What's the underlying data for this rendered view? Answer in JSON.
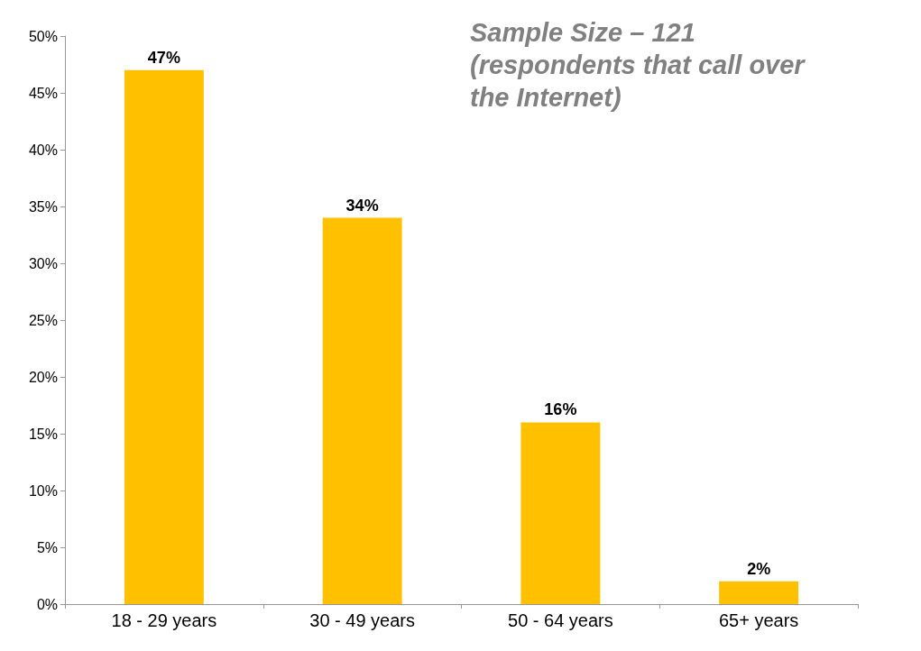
{
  "chart_data": {
    "type": "bar",
    "categories": [
      "18 - 29 years",
      "30 - 49 years",
      "50 - 64 years",
      "65+ years"
    ],
    "values": [
      47,
      34,
      16,
      2
    ],
    "value_labels": [
      "47%",
      "34%",
      "16%",
      "2%"
    ],
    "color": "#ffc000",
    "ylim": [
      0,
      50
    ],
    "yticks": [
      {
        "value": 0,
        "label": "0%"
      },
      {
        "value": 5,
        "label": "5%"
      },
      {
        "value": 10,
        "label": "10%"
      },
      {
        "value": 15,
        "label": "15%"
      },
      {
        "value": 20,
        "label": "20%"
      },
      {
        "value": 25,
        "label": "25%"
      },
      {
        "value": 30,
        "label": "30%"
      },
      {
        "value": 35,
        "label": "35%"
      },
      {
        "value": 40,
        "label": "40%"
      },
      {
        "value": 45,
        "label": "45%"
      },
      {
        "value": 50,
        "label": "50%"
      }
    ],
    "annotations": [
      "Sample Size – 121 (respondents that call over the Internet)"
    ],
    "grid": false
  }
}
